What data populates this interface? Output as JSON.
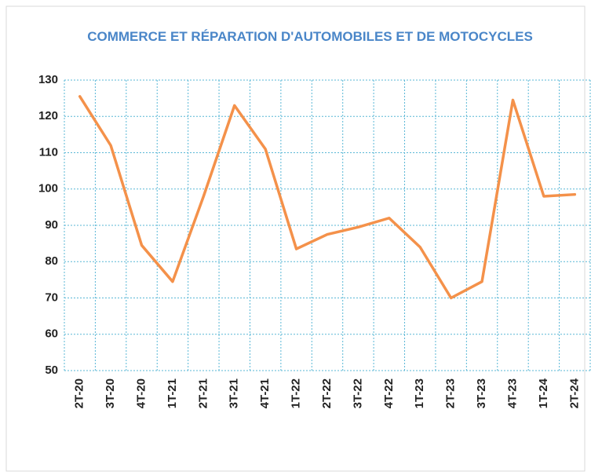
{
  "chart_data": {
    "type": "line",
    "title": "COMMERCE ET RÉPARATION D'AUTOMOBILES ET DE MOTOCYCLES",
    "categories": [
      "2T-20",
      "3T-20",
      "4T-20",
      "1T-21",
      "2T-21",
      "3T-21",
      "4T-21",
      "1T-22",
      "2T-22",
      "3T-22",
      "4T-22",
      "1T-23",
      "2T-23",
      "3T-23",
      "4T-23",
      "1T-24",
      "2T-24"
    ],
    "values": [
      125.5,
      112,
      84.5,
      74.5,
      98,
      123,
      111,
      83.5,
      87.5,
      89.5,
      92,
      84,
      70,
      74.5,
      124.5,
      98,
      98.5
    ],
    "color": "#f4914a",
    "ylim": [
      50,
      130
    ],
    "yticks": [
      50,
      60,
      70,
      80,
      90,
      100,
      110,
      120,
      130
    ],
    "grid": true
  }
}
